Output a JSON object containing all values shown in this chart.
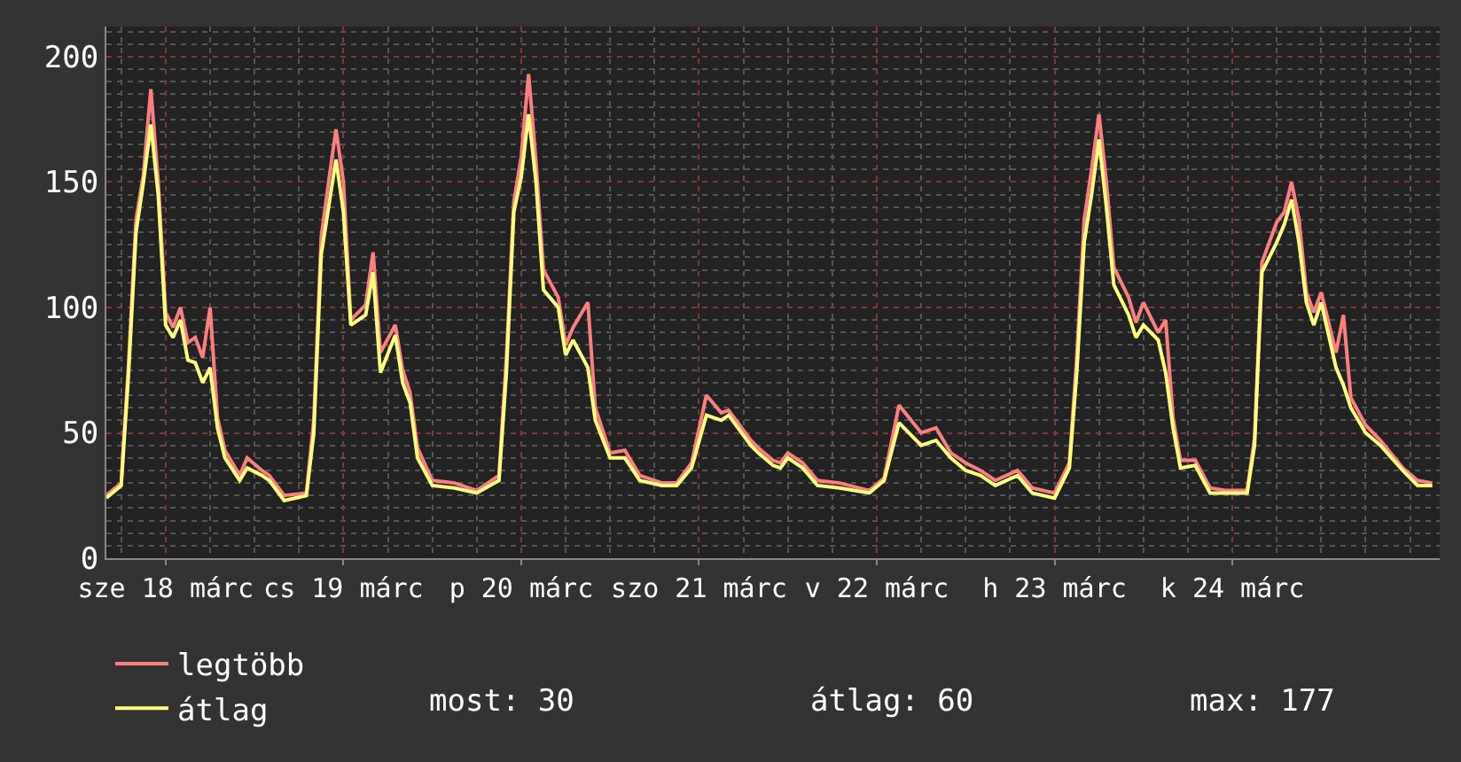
{
  "chart_data": {
    "type": "line",
    "x": [
      "--03-17T16:00",
      "--03-17T18:00",
      "--03-17T19:00",
      "--03-17T20:00",
      "--03-17T21:00",
      "--03-17T22:00",
      "--03-17T23:00",
      "--03-18T00:00",
      "--03-18T01:00",
      "--03-18T02:00",
      "--03-18T03:00",
      "--03-18T04:00",
      "--03-18T05:00",
      "--03-18T06:00",
      "--03-18T07:00",
      "--03-18T08:00",
      "--03-18T10:00",
      "--03-18T11:00",
      "--03-18T13:00",
      "--03-18T14:00",
      "--03-18T16:00",
      "--03-18T19:00",
      "--03-18T20:00",
      "--03-18T21:00",
      "--03-18T22:00",
      "--03-18T23:00",
      "--03-19T00:00",
      "--03-19T01:00",
      "--03-19T03:00",
      "--03-19T04:00",
      "--03-19T05:00",
      "--03-19T07:00",
      "--03-19T08:00",
      "--03-19T09:00",
      "--03-19T10:00",
      "--03-19T12:00",
      "--03-19T15:00",
      "--03-19T18:00",
      "--03-19T21:00",
      "--03-19T22:00",
      "--03-19T23:00",
      "--03-20T00:00",
      "--03-20T01:00",
      "--03-20T02:00",
      "--03-20T03:00",
      "--03-20T05:00",
      "--03-20T06:00",
      "--03-20T07:00",
      "--03-20T09:00",
      "--03-20T10:00",
      "--03-20T12:00",
      "--03-20T14:00",
      "--03-20T16:00",
      "--03-20T19:00",
      "--03-20T21:00",
      "--03-20T23:00",
      "--03-21T01:00",
      "--03-21T03:00",
      "--03-21T04:00",
      "--03-21T07:00",
      "--03-21T08:00",
      "--03-21T10:00",
      "--03-21T11:00",
      "--03-21T12:00",
      "--03-21T14:00",
      "--03-21T16:00",
      "--03-21T19:00",
      "--03-21T23:00",
      "--03-22T01:00",
      "--03-22T03:00",
      "--03-22T06:00",
      "--03-22T08:00",
      "--03-22T10:00",
      "--03-22T12:00",
      "--03-22T14:00",
      "--03-22T16:00",
      "--03-22T19:00",
      "--03-22T21:00",
      "--03-23T00:00",
      "--03-23T02:00",
      "--03-23T03:00",
      "--03-23T04:00",
      "--03-23T05:00",
      "--03-23T06:00",
      "--03-23T07:00",
      "--03-23T08:00",
      "--03-23T10:00",
      "--03-23T11:00",
      "--03-23T12:00",
      "--03-23T14:00",
      "--03-23T15:00",
      "--03-23T16:00",
      "--03-23T17:00",
      "--03-23T19:00",
      "--03-23T21:00",
      "--03-23T23:00",
      "--03-24T02:00",
      "--03-24T03:00",
      "--03-24T04:00",
      "--03-24T06:00",
      "--03-24T07:00",
      "--03-24T08:00",
      "--03-24T09:00",
      "--03-24T10:00",
      "--03-24T11:00",
      "--03-24T12:00",
      "--03-24T14:00",
      "--03-24T15:00",
      "--03-24T16:00",
      "--03-24T18:00",
      "--03-24T20:00",
      "--03-24T23:00",
      "--03-25T01:00",
      "--03-25T03:00"
    ],
    "series": [
      {
        "name": "legtöbb",
        "color": "#ff7f7f",
        "values": [
          25,
          30,
          78,
          135,
          153,
          187,
          150,
          98,
          92,
          100,
          86,
          88,
          80,
          100,
          56,
          43,
          33,
          40,
          35,
          33,
          25,
          26,
          55,
          128,
          150,
          171,
          150,
          95,
          101,
          122,
          82,
          93,
          75,
          66,
          44,
          31,
          30,
          27,
          33,
          80,
          142,
          160,
          193,
          158,
          115,
          104,
          85,
          92,
          102,
          60,
          42,
          43,
          33,
          30,
          30,
          38,
          65,
          58,
          59,
          47,
          44,
          39,
          38,
          42,
          38,
          31,
          30,
          27,
          32,
          61,
          50,
          52,
          42,
          38,
          35,
          31,
          35,
          28,
          26,
          38,
          80,
          135,
          155,
          177,
          150,
          116,
          104,
          94,
          102,
          90,
          95,
          56,
          39,
          39,
          28,
          27,
          27,
          48,
          118,
          134,
          138,
          150,
          135,
          106,
          98,
          106,
          82,
          97,
          64,
          53,
          47,
          36,
          31,
          30
        ]
      },
      {
        "name": "átlag",
        "color": "#ffff7f",
        "values": [
          24,
          29,
          74,
          130,
          150,
          173,
          145,
          93,
          88,
          95,
          79,
          78,
          70,
          76,
          52,
          40,
          31,
          36,
          33,
          31,
          23,
          25,
          50,
          121,
          140,
          159,
          138,
          93,
          97,
          114,
          74,
          89,
          70,
          62,
          40,
          29,
          28,
          26,
          31,
          74,
          138,
          152,
          177,
          150,
          107,
          100,
          81,
          87,
          76,
          55,
          40,
          40,
          31,
          29,
          29,
          36,
          57,
          55,
          57,
          45,
          42,
          37,
          36,
          40,
          36,
          29,
          28,
          26,
          31,
          54,
          45,
          47,
          40,
          35,
          33,
          29,
          33,
          26,
          24,
          36,
          74,
          126,
          145,
          167,
          140,
          109,
          97,
          88,
          93,
          87,
          74,
          52,
          36,
          37,
          26,
          26,
          26,
          45,
          114,
          126,
          133,
          143,
          126,
          102,
          93,
          102,
          76,
          69,
          60,
          50,
          45,
          35,
          29,
          29
        ]
      }
    ],
    "xlim": [
      "--03-17T16:00",
      "--03-25T04:00"
    ],
    "xticks": [
      {
        "value": "--03-18",
        "label": "sze 18 márc"
      },
      {
        "value": "--03-19",
        "label": "cs 19 márc"
      },
      {
        "value": "--03-20",
        "label": "p 20 márc"
      },
      {
        "value": "--03-21",
        "label": "szo 21 márc"
      },
      {
        "value": "--03-22",
        "label": "v 22 márc"
      },
      {
        "value": "--03-23",
        "label": "h 23 márc"
      },
      {
        "value": "--03-24",
        "label": "k 24 márc"
      }
    ],
    "ylim": [
      0,
      212
    ],
    "yticks": [
      0,
      50,
      100,
      150,
      200
    ],
    "grid": true,
    "legend": "bottom left",
    "annotations": [
      "most: 30",
      "átlag: 60",
      "max: 177"
    ]
  }
}
